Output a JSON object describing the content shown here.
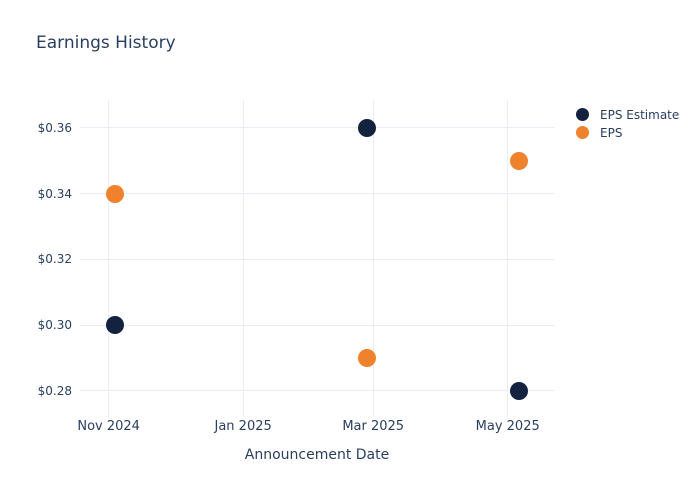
{
  "chart": {
    "title": "Earnings History",
    "x_axis_title": "Announcement Date"
  },
  "colors": {
    "eps_estimate": "#13233f",
    "eps": "#f0812d",
    "text": "#2a3f5f",
    "grid": "#e9eef6",
    "background": "#ffffff"
  },
  "chart_data": {
    "type": "scatter",
    "title": "Earnings History",
    "xlabel": "Announcement Date",
    "ylabel": "",
    "grid": true,
    "legend_position": "right",
    "x_range": [
      "2024-10-19",
      "2025-05-22"
    ],
    "y_range": [
      0.272,
      0.3685
    ],
    "x_ticks": [
      {
        "label": "Nov 2024",
        "date": "2024-11-01"
      },
      {
        "label": "Jan 2025",
        "date": "2025-01-01"
      },
      {
        "label": "Mar 2025",
        "date": "2025-03-01"
      },
      {
        "label": "May 2025",
        "date": "2025-05-01"
      }
    ],
    "y_ticks": [
      {
        "label": "$0.36",
        "value": 0.36
      },
      {
        "label": "$0.34",
        "value": 0.34
      },
      {
        "label": "$0.32",
        "value": 0.32
      },
      {
        "label": "$0.30",
        "value": 0.3
      },
      {
        "label": "$0.28",
        "value": 0.28
      }
    ],
    "series": [
      {
        "name": "EPS Estimate",
        "color": "#13233f",
        "points": [
          {
            "date": "2024-11-04",
            "value": 0.3
          },
          {
            "date": "2025-02-26",
            "value": 0.36
          },
          {
            "date": "2025-05-06",
            "value": 0.28
          }
        ]
      },
      {
        "name": "EPS",
        "color": "#f0812d",
        "points": [
          {
            "date": "2024-11-04",
            "value": 0.34
          },
          {
            "date": "2025-02-26",
            "value": 0.29
          },
          {
            "date": "2025-05-06",
            "value": 0.35
          }
        ]
      }
    ]
  }
}
